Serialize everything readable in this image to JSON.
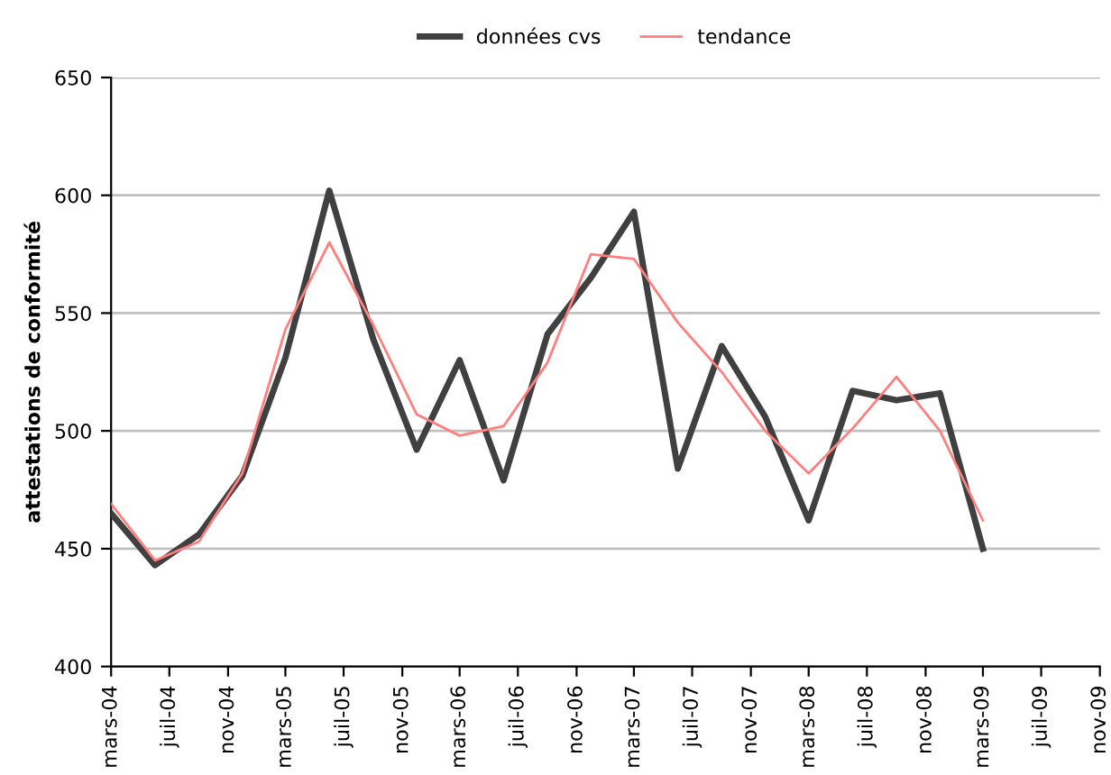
{
  "chart_data": {
    "type": "line",
    "ylabel": "attestations de conformité",
    "x": [
      "2004-03",
      "2004-06",
      "2004-09",
      "2004-12",
      "2005-03",
      "2005-06",
      "2005-09",
      "2005-12",
      "2006-03",
      "2006-06",
      "2006-09",
      "2006-12",
      "2007-03",
      "2007-06",
      "2007-09",
      "2007-12",
      "2008-03",
      "2008-06",
      "2008-09",
      "2008-12",
      "2009-03"
    ],
    "series": [
      {
        "name": "données cvs",
        "color": "#404040",
        "values": [
          465,
          443,
          456,
          481,
          531,
          602,
          539,
          492,
          530,
          479,
          541,
          565,
          593,
          484,
          536,
          506,
          462,
          517,
          513,
          516,
          450
        ]
      },
      {
        "name": "tendance",
        "color": "#ff7f7f",
        "values": [
          469,
          445,
          453,
          482,
          543,
          580,
          545,
          507,
          498,
          502,
          529,
          575,
          573,
          546,
          525,
          500,
          482,
          501,
          523,
          500,
          462
        ]
      }
    ],
    "xlim": [
      "2004-03",
      "2009-11"
    ],
    "xticks": [
      {
        "value": "2004-03",
        "label": "mars-04"
      },
      {
        "value": "2004-07",
        "label": "juil-04"
      },
      {
        "value": "2004-11",
        "label": "nov-04"
      },
      {
        "value": "2005-03",
        "label": "mars-05"
      },
      {
        "value": "2005-07",
        "label": "juil-05"
      },
      {
        "value": "2005-11",
        "label": "nov-05"
      },
      {
        "value": "2006-03",
        "label": "mars-06"
      },
      {
        "value": "2006-07",
        "label": "juil-06"
      },
      {
        "value": "2006-11",
        "label": "nov-06"
      },
      {
        "value": "2007-03",
        "label": "mars-07"
      },
      {
        "value": "2007-07",
        "label": "juil-07"
      },
      {
        "value": "2007-11",
        "label": "nov-07"
      },
      {
        "value": "2008-03",
        "label": "mars-08"
      },
      {
        "value": "2008-07",
        "label": "juil-08"
      },
      {
        "value": "2008-11",
        "label": "nov-08"
      },
      {
        "value": "2009-03",
        "label": "mars-09"
      },
      {
        "value": "2009-07",
        "label": "juil-09"
      },
      {
        "value": "2009-11",
        "label": "nov-09"
      }
    ],
    "ylim": [
      400,
      650
    ],
    "yticks": [
      400,
      450,
      500,
      550,
      600,
      650
    ],
    "grid": "y",
    "legend": "top",
    "marker": "none",
    "line_style": "solid"
  }
}
